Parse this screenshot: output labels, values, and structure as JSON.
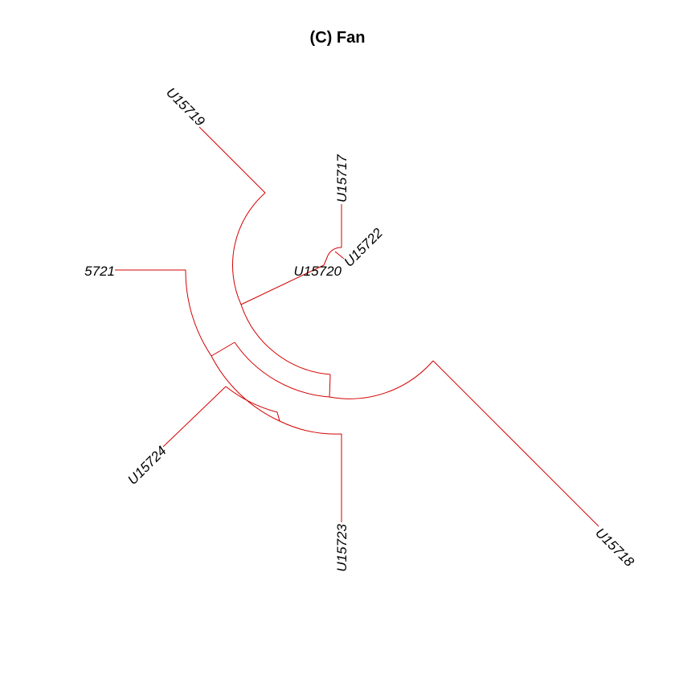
{
  "title": "(C) Fan",
  "tree": {
    "type": "fan",
    "branch_color": "#d40000",
    "tips": [
      "U15719",
      "U15717",
      "U15722",
      "U15720",
      "5721",
      "U15724",
      "U15723",
      "U15718"
    ]
  }
}
